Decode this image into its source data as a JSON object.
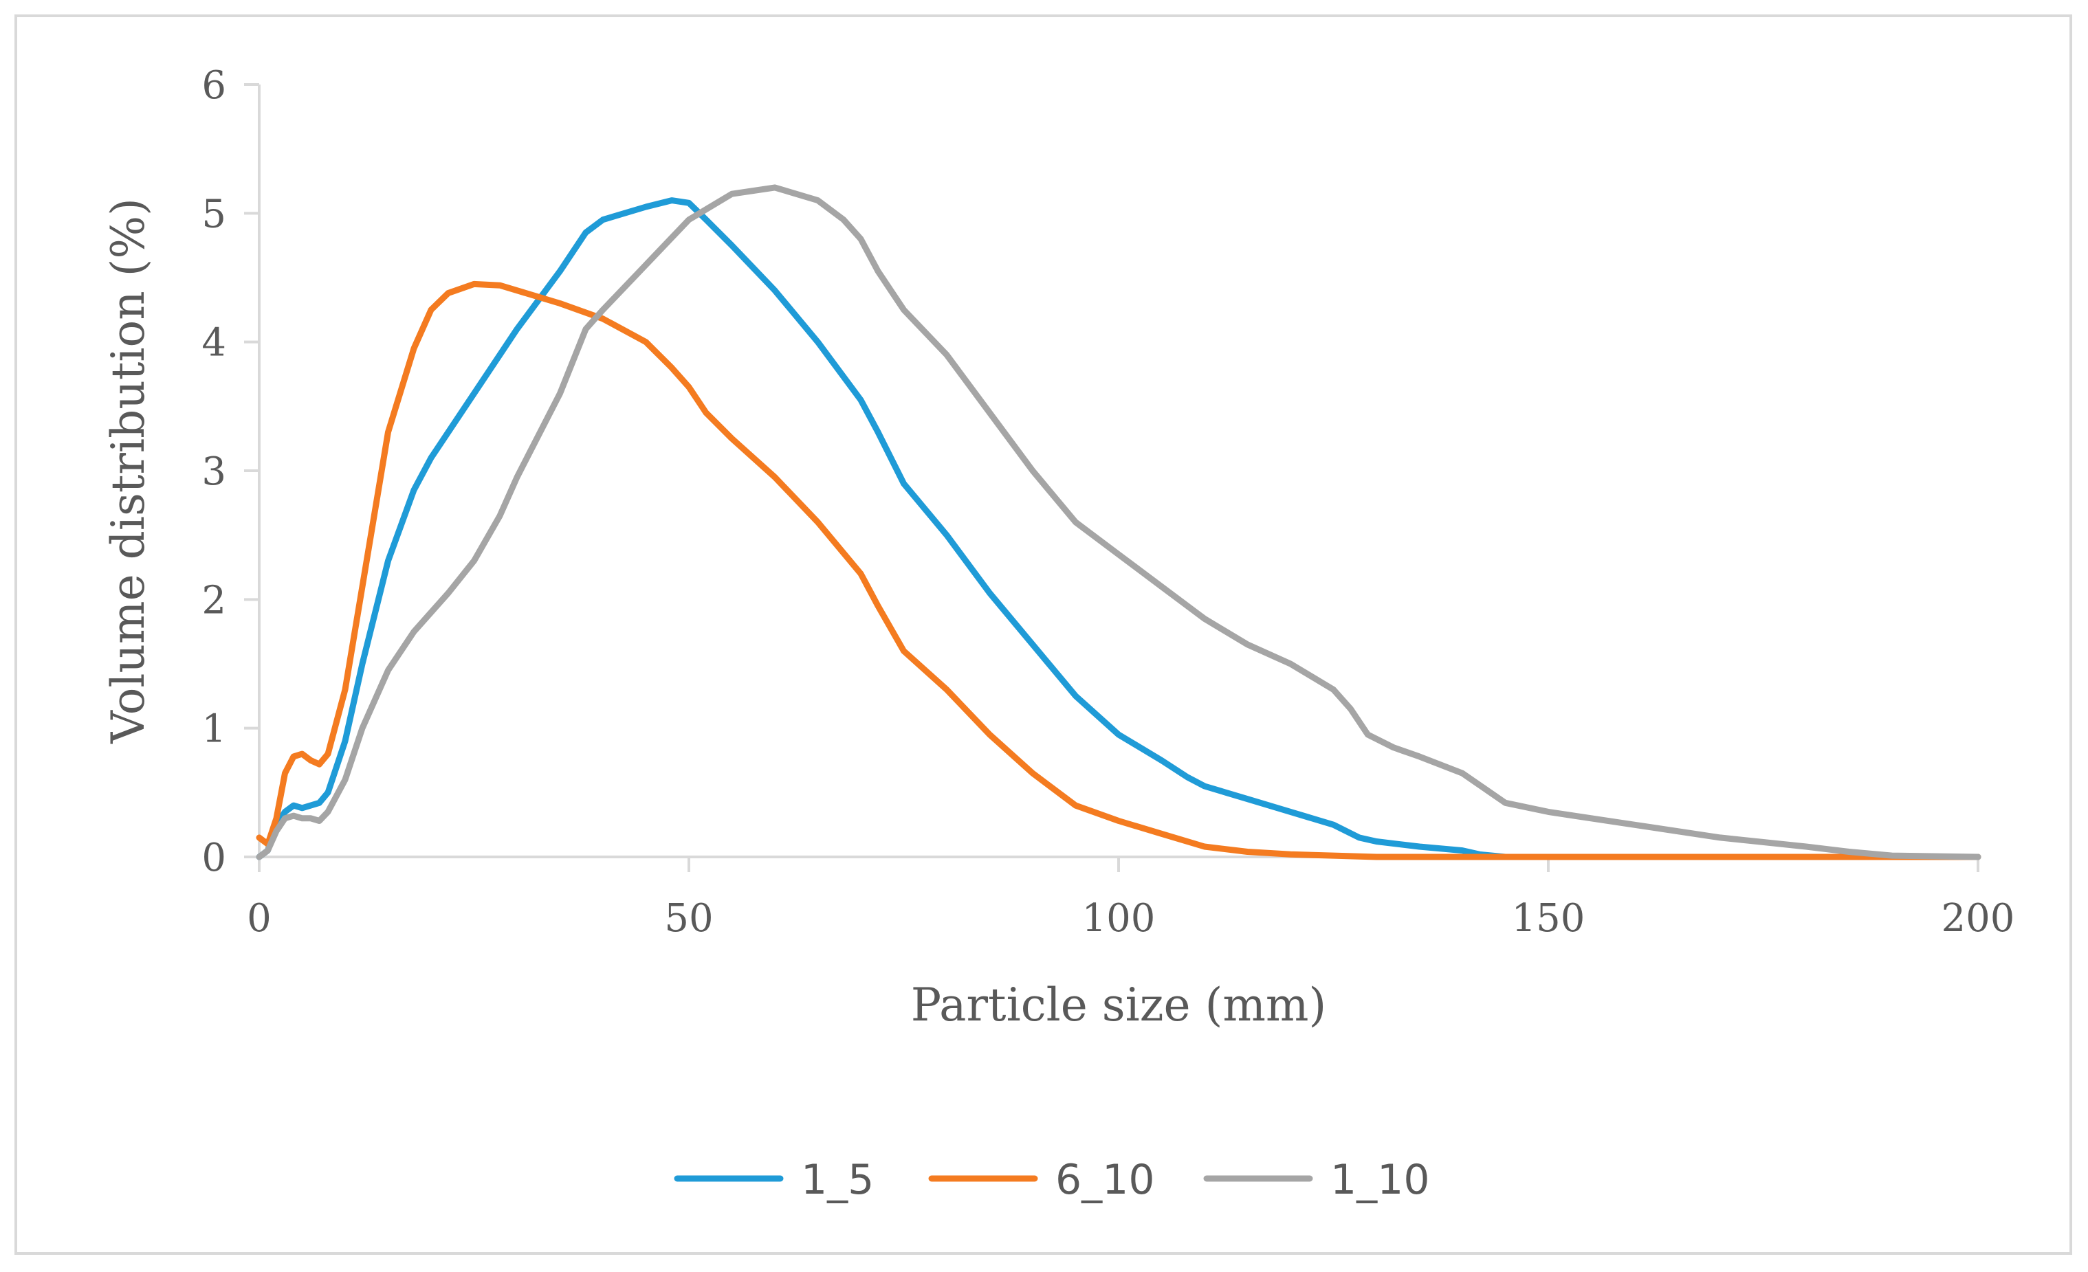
{
  "chart_data": {
    "type": "line",
    "title": "",
    "xlabel": "Particle size (mm)",
    "ylabel": "Volume distribution (%)",
    "xlim": [
      0,
      200
    ],
    "ylim": [
      0,
      6
    ],
    "xticks": [
      0,
      50,
      100,
      150,
      200
    ],
    "yticks": [
      0,
      1,
      2,
      3,
      4,
      5,
      6
    ],
    "grid": false,
    "legend_position": "bottom",
    "series": [
      {
        "name": "1_5",
        "color": "#1f9bd7",
        "x": [
          0,
          1,
          2,
          3,
          4,
          5,
          6,
          7,
          8,
          10,
          12,
          15,
          18,
          20,
          25,
          30,
          35,
          38,
          40,
          45,
          48,
          50,
          52,
          55,
          60,
          65,
          70,
          72,
          75,
          80,
          85,
          90,
          95,
          100,
          105,
          108,
          110,
          115,
          120,
          125,
          128,
          130,
          135,
          140,
          142,
          145,
          150,
          160,
          170,
          180,
          190,
          200
        ],
        "y": [
          0,
          0.05,
          0.25,
          0.35,
          0.4,
          0.38,
          0.4,
          0.42,
          0.5,
          0.9,
          1.5,
          2.3,
          2.85,
          3.1,
          3.6,
          4.1,
          4.55,
          4.85,
          4.95,
          5.05,
          5.1,
          5.08,
          4.95,
          4.75,
          4.4,
          4.0,
          3.55,
          3.3,
          2.9,
          2.5,
          2.05,
          1.65,
          1.25,
          0.95,
          0.75,
          0.62,
          0.55,
          0.45,
          0.35,
          0.25,
          0.15,
          0.12,
          0.08,
          0.05,
          0.02,
          0,
          0,
          0,
          0,
          0,
          0,
          0
        ]
      },
      {
        "name": "6_10",
        "color": "#f47b20",
        "x": [
          0,
          1,
          2,
          3,
          4,
          5,
          6,
          7,
          8,
          10,
          12,
          15,
          18,
          20,
          22,
          25,
          28,
          30,
          35,
          40,
          45,
          48,
          50,
          52,
          55,
          60,
          65,
          70,
          72,
          75,
          80,
          85,
          90,
          95,
          100,
          105,
          110,
          115,
          120,
          125,
          130,
          140,
          150,
          160,
          170,
          180,
          190,
          200
        ],
        "y": [
          0.15,
          0.1,
          0.3,
          0.65,
          0.78,
          0.8,
          0.75,
          0.72,
          0.8,
          1.3,
          2.1,
          3.3,
          3.95,
          4.25,
          4.38,
          4.45,
          4.44,
          4.4,
          4.3,
          4.18,
          4.0,
          3.8,
          3.65,
          3.45,
          3.25,
          2.95,
          2.6,
          2.2,
          1.95,
          1.6,
          1.3,
          0.95,
          0.65,
          0.4,
          0.28,
          0.18,
          0.08,
          0.04,
          0.02,
          0.01,
          0,
          0,
          0,
          0,
          0,
          0,
          0,
          0
        ]
      },
      {
        "name": "1_10",
        "color": "#a5a5a5",
        "x": [
          0,
          1,
          2,
          3,
          4,
          5,
          6,
          7,
          8,
          10,
          12,
          15,
          18,
          20,
          22,
          25,
          28,
          30,
          35,
          38,
          40,
          45,
          50,
          55,
          60,
          65,
          68,
          70,
          72,
          75,
          80,
          85,
          90,
          95,
          100,
          105,
          110,
          115,
          120,
          125,
          127,
          129,
          132,
          135,
          140,
          145,
          150,
          160,
          170,
          180,
          185,
          190,
          200
        ],
        "y": [
          0,
          0.05,
          0.2,
          0.3,
          0.32,
          0.3,
          0.3,
          0.28,
          0.35,
          0.6,
          1.0,
          1.45,
          1.75,
          1.9,
          2.05,
          2.3,
          2.65,
          2.95,
          3.6,
          4.1,
          4.25,
          4.6,
          4.95,
          5.15,
          5.2,
          5.1,
          4.95,
          4.8,
          4.55,
          4.25,
          3.9,
          3.45,
          3.0,
          2.6,
          2.35,
          2.1,
          1.85,
          1.65,
          1.5,
          1.3,
          1.15,
          0.95,
          0.85,
          0.78,
          0.65,
          0.42,
          0.35,
          0.25,
          0.15,
          0.08,
          0.04,
          0.01,
          0
        ]
      }
    ]
  }
}
